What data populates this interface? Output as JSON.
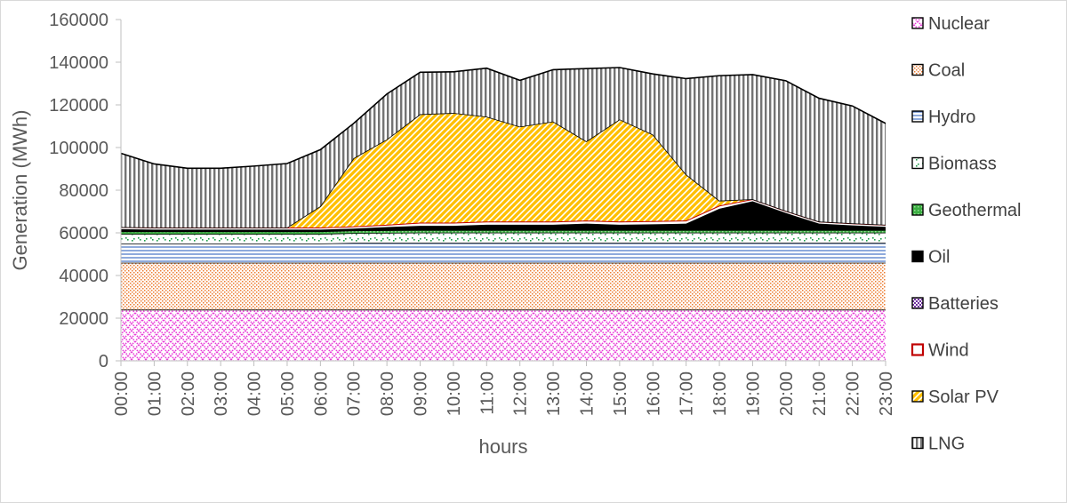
{
  "chart_data": {
    "type": "area",
    "stacked": true,
    "title": "",
    "xlabel": "hours",
    "ylabel": "Generation (MWh)",
    "ylim": [
      0,
      160000
    ],
    "yticks": [
      "0",
      "20000",
      "40000",
      "60000",
      "80000",
      "100000",
      "120000",
      "140000",
      "160000"
    ],
    "categories": [
      "00:00",
      "01:00",
      "02:00",
      "03:00",
      "04:00",
      "05:00",
      "06:00",
      "07:00",
      "08:00",
      "09:00",
      "10:00",
      "11:00",
      "12:00",
      "13:00",
      "14:00",
      "15:00",
      "16:00",
      "17:00",
      "18:00",
      "19:00",
      "20:00",
      "21:00",
      "22:00",
      "23:00"
    ],
    "grid": false,
    "legend_position": "right",
    "series": [
      {
        "name": "Nuclear",
        "pattern": "crosshatch",
        "color": "#e83ad8",
        "values": [
          24000,
          24000,
          24000,
          24000,
          24000,
          24000,
          24000,
          24000,
          24000,
          24000,
          24000,
          24000,
          24000,
          24000,
          24000,
          24000,
          24000,
          24000,
          24000,
          24000,
          24000,
          24000,
          24000,
          24000
        ]
      },
      {
        "name": "Coal",
        "pattern": "dots",
        "color": "#ed7d31",
        "values": [
          22000,
          22000,
          22000,
          22000,
          22000,
          22000,
          22000,
          22000,
          22000,
          22000,
          22000,
          22000,
          22000,
          22000,
          22000,
          22000,
          22000,
          22000,
          22000,
          22000,
          22000,
          22000,
          22000,
          22000
        ]
      },
      {
        "name": "Hydro",
        "pattern": "hlines",
        "color": "#4472c4",
        "values": [
          9000,
          9000,
          9000,
          9000,
          9000,
          9000,
          9000,
          9300,
          9300,
          9300,
          9300,
          9300,
          9300,
          9300,
          9300,
          9300,
          9300,
          9300,
          9300,
          9300,
          9300,
          9300,
          9300,
          9300
        ]
      },
      {
        "name": "Biomass",
        "pattern": "greendots",
        "color": "#1e9e4a",
        "values": [
          4500,
          4500,
          4500,
          4500,
          4500,
          4500,
          4500,
          4600,
          4700,
          4800,
          4800,
          4800,
          4800,
          4800,
          4800,
          4800,
          4800,
          4800,
          4800,
          4800,
          4800,
          4800,
          4800,
          4800
        ]
      },
      {
        "name": "Geothermal",
        "pattern": "green",
        "color": "#3cb043",
        "values": [
          1200,
          1200,
          1200,
          1200,
          1200,
          1200,
          1200,
          1200,
          1200,
          1200,
          1200,
          1200,
          1200,
          1200,
          1200,
          1200,
          1200,
          1200,
          1200,
          1200,
          1200,
          1200,
          1200,
          1200
        ]
      },
      {
        "name": "Oil",
        "pattern": "solid",
        "color": "#000000",
        "values": [
          1000,
          800,
          800,
          800,
          800,
          800,
          800,
          900,
          1500,
          2000,
          2000,
          2500,
          2500,
          2500,
          3000,
          2500,
          2700,
          3000,
          10000,
          13500,
          8000,
          3000,
          2200,
          1500
        ]
      },
      {
        "name": "Batteries",
        "pattern": "checker",
        "color": "#7030a0",
        "values": [
          0,
          0,
          0,
          0,
          0,
          0,
          0,
          0,
          0,
          0,
          0,
          0,
          0,
          0,
          0,
          0,
          0,
          0,
          0,
          0,
          0,
          0,
          0,
          0
        ]
      },
      {
        "name": "Wind",
        "pattern": "redbox",
        "color": "#c00000",
        "values": [
          1000,
          1000,
          1000,
          1000,
          1000,
          1000,
          1000,
          1000,
          1100,
          1500,
          1500,
          1500,
          1500,
          1500,
          1500,
          1500,
          1500,
          1500,
          1500,
          1000,
          1000,
          1000,
          1000,
          1000
        ]
      },
      {
        "name": "Solar PV",
        "pattern": "diagonal",
        "color": "#ffc000",
        "values": [
          0,
          0,
          0,
          0,
          0,
          0,
          10000,
          32000,
          40000,
          50800,
          51400,
          49200,
          44500,
          46900,
          37100,
          47900,
          40600,
          21600,
          2300,
          0,
          0,
          0,
          0,
          0
        ]
      },
      {
        "name": "LNG",
        "pattern": "vlines",
        "color": "#7f7f7f",
        "values": [
          34600,
          29800,
          27800,
          27800,
          28800,
          30000,
          26500,
          16300,
          21300,
          19700,
          19300,
          22700,
          21700,
          24300,
          34100,
          24300,
          28400,
          44900,
          58600,
          58400,
          61000,
          57800,
          55000,
          47500
        ]
      }
    ]
  }
}
